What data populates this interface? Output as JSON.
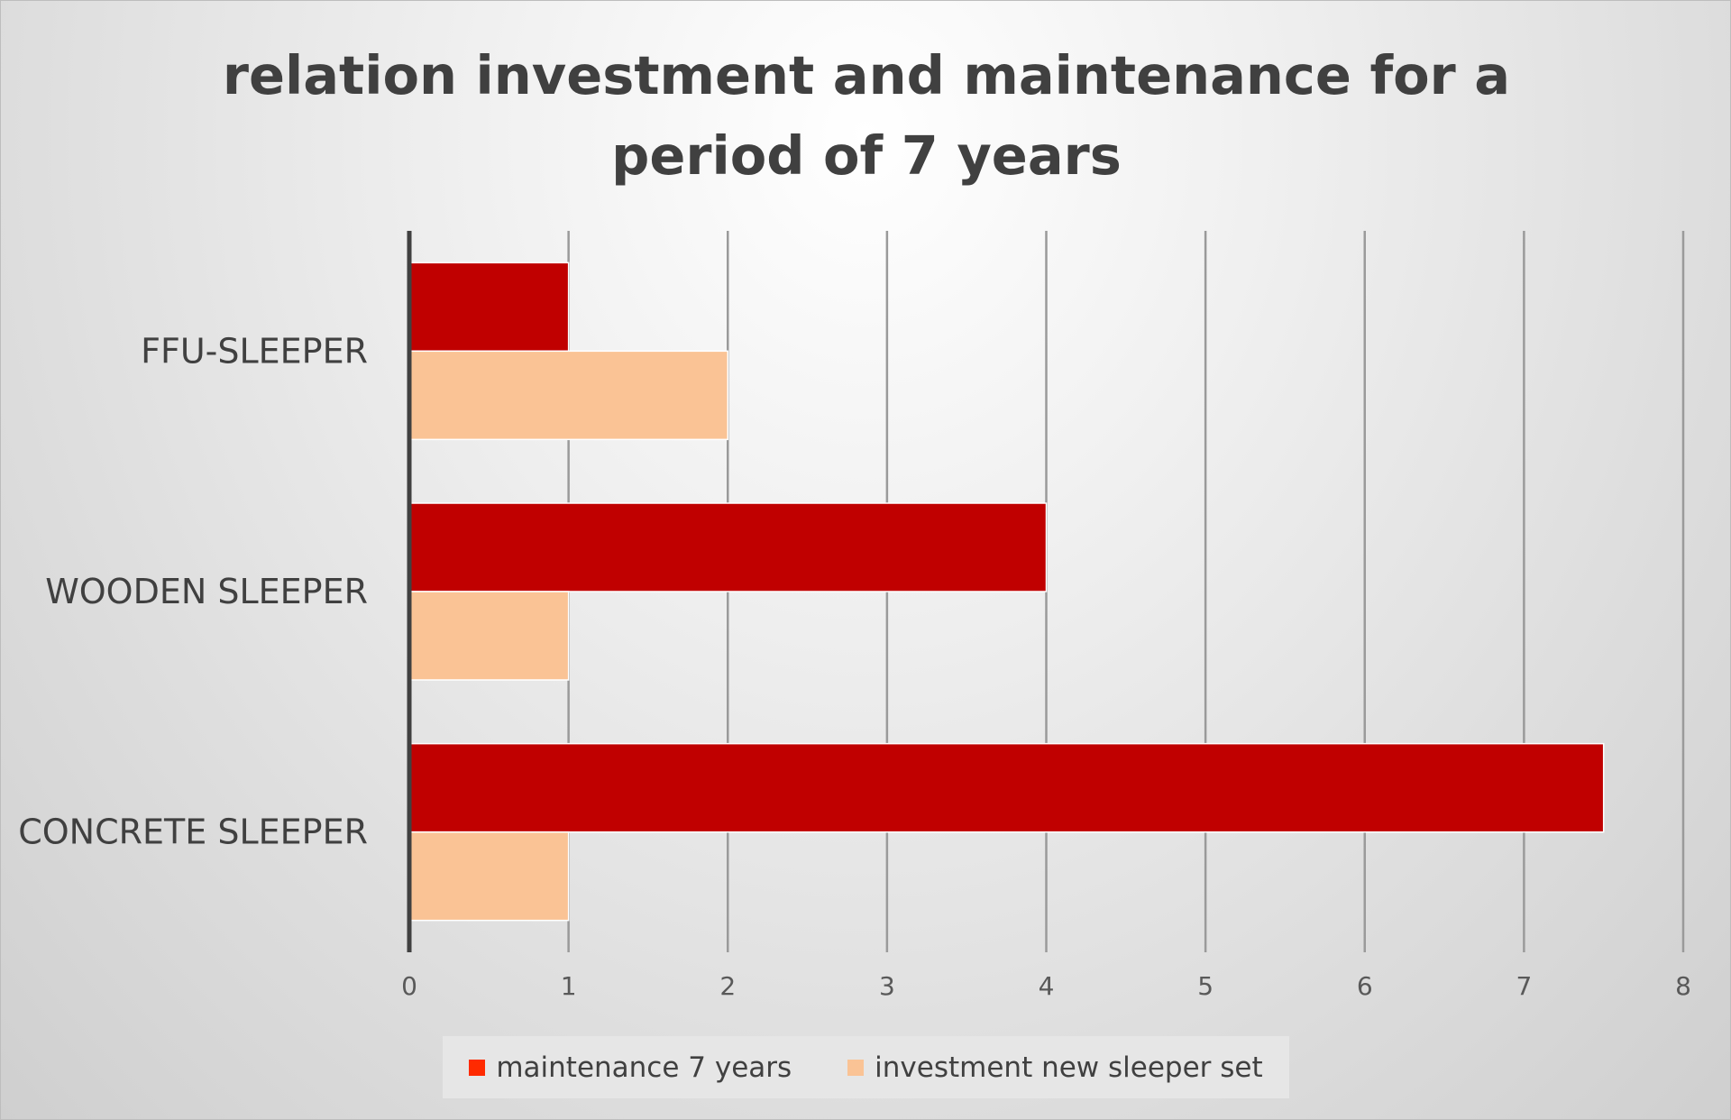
{
  "chart_data": {
    "type": "bar",
    "orientation": "horizontal",
    "title": "relation investment and maintenance for a period of 7 years",
    "categories": [
      "FFU-SLEEPER",
      "WOODEN SLEEPER",
      "CONCRETE SLEEPER"
    ],
    "series": [
      {
        "name": "maintenance 7 years",
        "values": [
          1,
          4,
          7.5
        ],
        "color": "#C00000",
        "legend_color": "#FF2A00"
      },
      {
        "name": "investment new sleeper set",
        "values": [
          2,
          1,
          1
        ],
        "color": "#FAC395",
        "legend_color": "#FAC395"
      }
    ],
    "x_ticks": [
      0,
      1,
      2,
      3,
      4,
      5,
      6,
      7,
      8
    ],
    "xlim": [
      0,
      8
    ],
    "grid": true,
    "legend_position": "bottom"
  }
}
